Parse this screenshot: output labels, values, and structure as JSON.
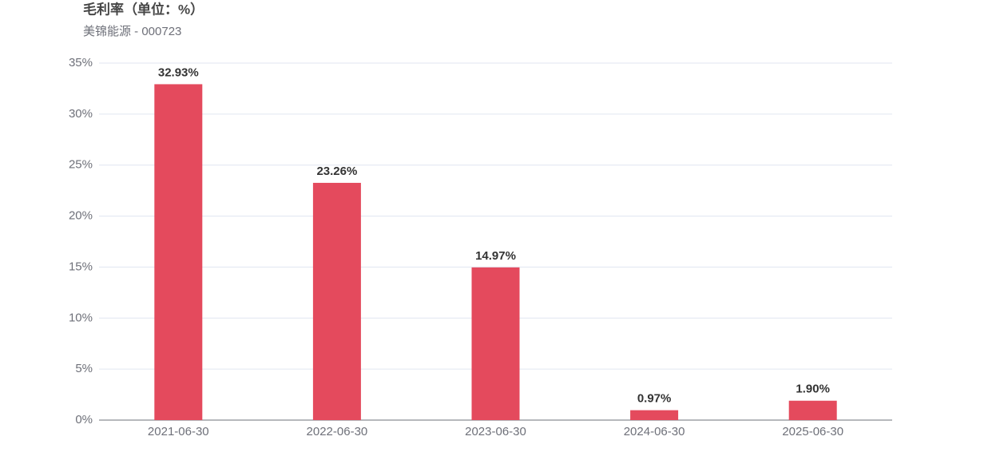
{
  "chart_data": {
    "type": "bar",
    "title": "毛利率（单位：%）",
    "subtitle": "美锦能源 - 000723",
    "categories": [
      "2021-06-30",
      "2022-06-30",
      "2023-06-30",
      "2024-06-30",
      "2025-06-30"
    ],
    "values": [
      32.93,
      23.26,
      14.97,
      0.97,
      1.9
    ],
    "value_labels": [
      "32.93%",
      "23.26%",
      "14.97%",
      "0.97%",
      "1.90%"
    ],
    "color": "#e44a5d",
    "ylim": [
      0,
      35
    ],
    "yticks": [
      {
        "value": 0,
        "label": "0%"
      },
      {
        "value": 5,
        "label": "5%"
      },
      {
        "value": 10,
        "label": "10%"
      },
      {
        "value": 15,
        "label": "15%"
      },
      {
        "value": 20,
        "label": "20%"
      },
      {
        "value": 25,
        "label": "25%"
      },
      {
        "value": 30,
        "label": "30%"
      },
      {
        "value": 35,
        "label": "35%"
      }
    ],
    "grid": true
  }
}
